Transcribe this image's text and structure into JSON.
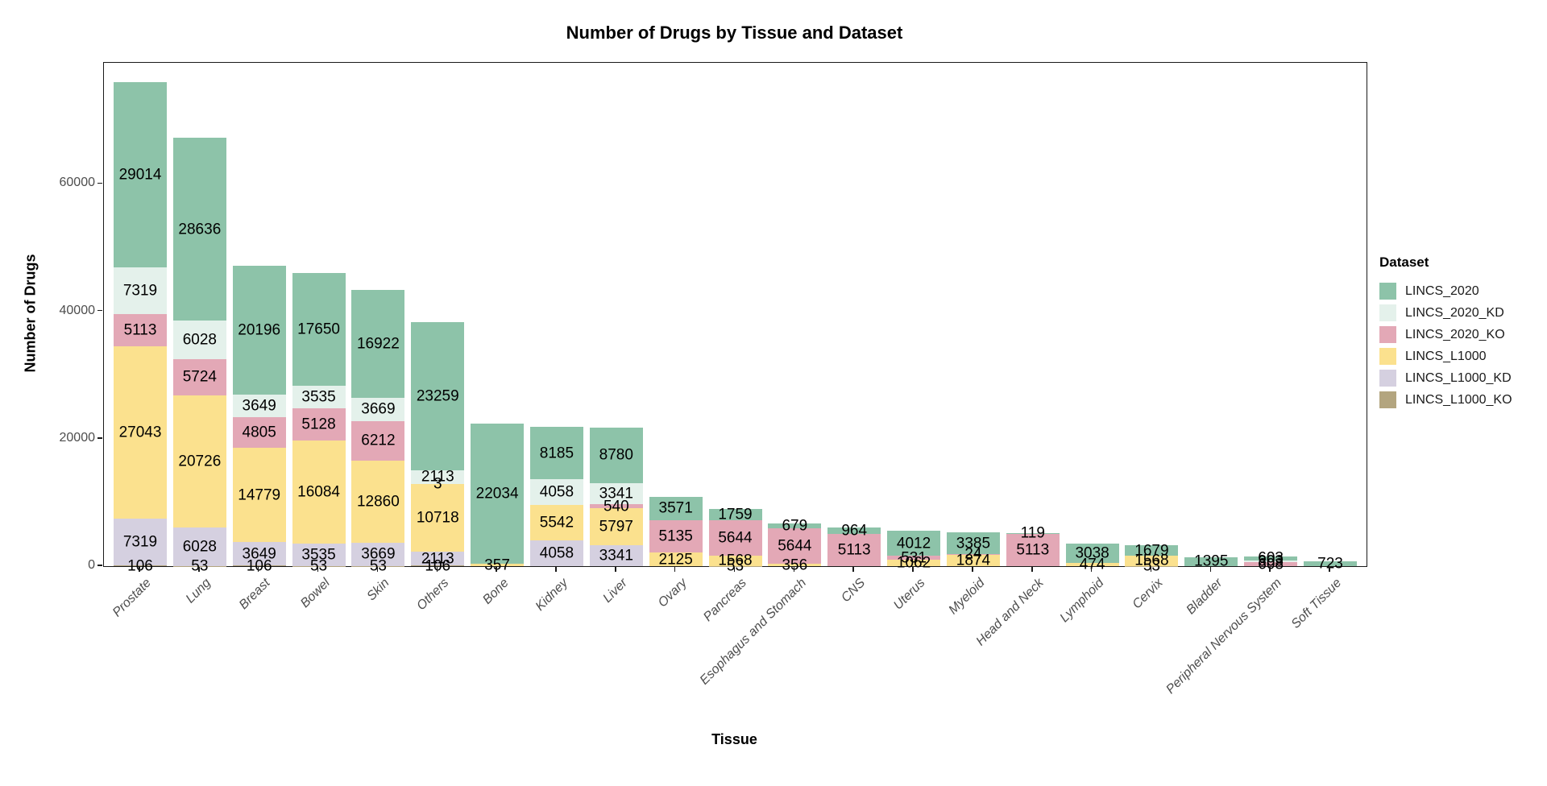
{
  "chart_data": {
    "type": "bar",
    "stacked": true,
    "title": "Number of Drugs by Tissue and Dataset",
    "xlabel": "Tissue",
    "ylabel": "Number of Drugs",
    "legend_title": "Dataset",
    "legend_position": "right",
    "grid": false,
    "ylim": [
      0,
      79000
    ],
    "yticks": [
      0,
      20000,
      40000,
      60000
    ],
    "datasets": [
      {
        "name": "LINCS_2020",
        "color": "#8dc3a9"
      },
      {
        "name": "LINCS_2020_KD",
        "color": "#e4f1eb"
      },
      {
        "name": "LINCS_2020_KO",
        "color": "#e3a8b6"
      },
      {
        "name": "LINCS_L1000",
        "color": "#fbe18e"
      },
      {
        "name": "LINCS_L1000_KD",
        "color": "#d5d0e0"
      },
      {
        "name": "LINCS_L1000_KO",
        "color": "#b3a57f"
      }
    ],
    "categories": [
      "Prostate",
      "Lung",
      "Breast",
      "Bowel",
      "Skin",
      "Others",
      "Bone",
      "Kidney",
      "Liver",
      "Ovary",
      "Pancreas",
      "Esophagus and Stomach",
      "CNS",
      "Uterus",
      "Myeloid",
      "Head and Neck",
      "Lymphoid",
      "Cervix",
      "Bladder",
      "Peripheral Nervous System",
      "Soft Tissue"
    ],
    "bars": [
      {
        "tissue": "Prostate",
        "segments": [
          {
            "dataset": "LINCS_L1000_KO",
            "value": 106
          },
          {
            "dataset": "LINCS_L1000_KD",
            "value": 7319
          },
          {
            "dataset": "LINCS_L1000",
            "value": 27043
          },
          {
            "dataset": "LINCS_2020_KO",
            "value": 5113
          },
          {
            "dataset": "LINCS_2020_KD",
            "value": 7319
          },
          {
            "dataset": "LINCS_2020",
            "value": 29014
          }
        ]
      },
      {
        "tissue": "Lung",
        "segments": [
          {
            "dataset": "LINCS_L1000_KO",
            "value": 53
          },
          {
            "dataset": "LINCS_L1000_KD",
            "value": 6028
          },
          {
            "dataset": "LINCS_L1000",
            "value": 20726
          },
          {
            "dataset": "LINCS_2020_KO",
            "value": 5724
          },
          {
            "dataset": "LINCS_2020_KD",
            "value": 6028
          },
          {
            "dataset": "LINCS_2020",
            "value": 28636
          }
        ]
      },
      {
        "tissue": "Breast",
        "segments": [
          {
            "dataset": "LINCS_L1000_KO",
            "value": 106
          },
          {
            "dataset": "LINCS_L1000_KD",
            "value": 3649
          },
          {
            "dataset": "LINCS_L1000",
            "value": 14779
          },
          {
            "dataset": "LINCS_2020_KO",
            "value": 4805
          },
          {
            "dataset": "LINCS_2020_KD",
            "value": 3649
          },
          {
            "dataset": "LINCS_2020",
            "value": 20196
          }
        ]
      },
      {
        "tissue": "Bowel",
        "segments": [
          {
            "dataset": "LINCS_L1000_KO",
            "value": 53
          },
          {
            "dataset": "LINCS_L1000_KD",
            "value": 3535
          },
          {
            "dataset": "LINCS_L1000",
            "value": 16084
          },
          {
            "dataset": "LINCS_2020_KO",
            "value": 5128
          },
          {
            "dataset": "LINCS_2020_KD",
            "value": 3535
          },
          {
            "dataset": "LINCS_2020",
            "value": 17650
          }
        ]
      },
      {
        "tissue": "Skin",
        "segments": [
          {
            "dataset": "LINCS_L1000_KO",
            "value": 53
          },
          {
            "dataset": "LINCS_L1000_KD",
            "value": 3669
          },
          {
            "dataset": "LINCS_L1000",
            "value": 12860
          },
          {
            "dataset": "LINCS_2020_KO",
            "value": 6212
          },
          {
            "dataset": "LINCS_2020_KD",
            "value": 3669
          },
          {
            "dataset": "LINCS_2020",
            "value": 16922
          }
        ]
      },
      {
        "tissue": "Others",
        "segments": [
          {
            "dataset": "LINCS_L1000_KO",
            "value": 106
          },
          {
            "dataset": "LINCS_L1000_KD",
            "value": 2113
          },
          {
            "dataset": "LINCS_L1000",
            "value": 10718
          },
          {
            "dataset": "LINCS_2020_KO",
            "value": 3
          },
          {
            "dataset": "LINCS_2020_KD",
            "value": 2113
          },
          {
            "dataset": "LINCS_2020",
            "value": 23259
          }
        ]
      },
      {
        "tissue": "Bone",
        "segments": [
          {
            "dataset": "LINCS_L1000",
            "value": 357
          },
          {
            "dataset": "LINCS_2020",
            "value": 22034
          }
        ]
      },
      {
        "tissue": "Kidney",
        "segments": [
          {
            "dataset": "LINCS_L1000_KD",
            "value": 4058
          },
          {
            "dataset": "LINCS_L1000",
            "value": 5542
          },
          {
            "dataset": "LINCS_2020_KD",
            "value": 4058
          },
          {
            "dataset": "LINCS_2020",
            "value": 8185
          }
        ]
      },
      {
        "tissue": "Liver",
        "segments": [
          {
            "dataset": "LINCS_L1000_KD",
            "value": 3341
          },
          {
            "dataset": "LINCS_L1000",
            "value": 5797
          },
          {
            "dataset": "LINCS_2020_KO",
            "value": 540
          },
          {
            "dataset": "LINCS_2020_KD",
            "value": 3341
          },
          {
            "dataset": "LINCS_2020",
            "value": 8780
          }
        ]
      },
      {
        "tissue": "Ovary",
        "segments": [
          {
            "dataset": "LINCS_L1000",
            "value": 2125
          },
          {
            "dataset": "LINCS_2020_KO",
            "value": 5135
          },
          {
            "dataset": "LINCS_2020",
            "value": 3571
          }
        ]
      },
      {
        "tissue": "Pancreas",
        "segments": [
          {
            "dataset": "LINCS_L1000_KO",
            "value": 53
          },
          {
            "dataset": "LINCS_L1000",
            "value": 1568
          },
          {
            "dataset": "LINCS_2020_KO",
            "value": 5644
          },
          {
            "dataset": "LINCS_2020",
            "value": 1759
          }
        ]
      },
      {
        "tissue": "Esophagus and Stomach",
        "segments": [
          {
            "dataset": "LINCS_L1000",
            "value": 356
          },
          {
            "dataset": "LINCS_2020_KO",
            "value": 5644
          },
          {
            "dataset": "LINCS_2020",
            "value": 679
          }
        ]
      },
      {
        "tissue": "CNS",
        "segments": [
          {
            "dataset": "LINCS_2020_KO",
            "value": 5113
          },
          {
            "dataset": "LINCS_2020",
            "value": 964
          }
        ]
      },
      {
        "tissue": "Uterus",
        "segments": [
          {
            "dataset": "LINCS_L1000",
            "value": 1062
          },
          {
            "dataset": "LINCS_2020_KO",
            "value": 531
          },
          {
            "dataset": "LINCS_2020",
            "value": 4012
          }
        ]
      },
      {
        "tissue": "Myeloid",
        "segments": [
          {
            "dataset": "LINCS_L1000",
            "value": 1874
          },
          {
            "dataset": "LINCS_2020_KO",
            "value": 24
          },
          {
            "dataset": "LINCS_2020",
            "value": 3385
          }
        ]
      },
      {
        "tissue": "Head and Neck",
        "segments": [
          {
            "dataset": "LINCS_2020_KO",
            "value": 5113
          },
          {
            "dataset": "LINCS_2020",
            "value": 119
          }
        ]
      },
      {
        "tissue": "Lymphoid",
        "segments": [
          {
            "dataset": "LINCS_L1000",
            "value": 474
          },
          {
            "dataset": "LINCS_2020",
            "value": 3038
          }
        ]
      },
      {
        "tissue": "Cervix",
        "segments": [
          {
            "dataset": "LINCS_L1000_KO",
            "value": 53
          },
          {
            "dataset": "LINCS_L1000",
            "value": 1568
          },
          {
            "dataset": "LINCS_2020",
            "value": 1679
          }
        ]
      },
      {
        "tissue": "Bladder",
        "segments": [
          {
            "dataset": "LINCS_2020",
            "value": 1395
          }
        ]
      },
      {
        "tissue": "Peripheral Nervous System",
        "segments": [
          {
            "dataset": "LINCS_2020_KO",
            "value": 608
          },
          {
            "dataset": "LINCS_2020_KD",
            "value": 303
          },
          {
            "dataset": "LINCS_2020",
            "value": 603
          }
        ]
      },
      {
        "tissue": "Soft Tissue",
        "segments": [
          {
            "dataset": "LINCS_2020",
            "value": 723
          }
        ]
      }
    ]
  }
}
